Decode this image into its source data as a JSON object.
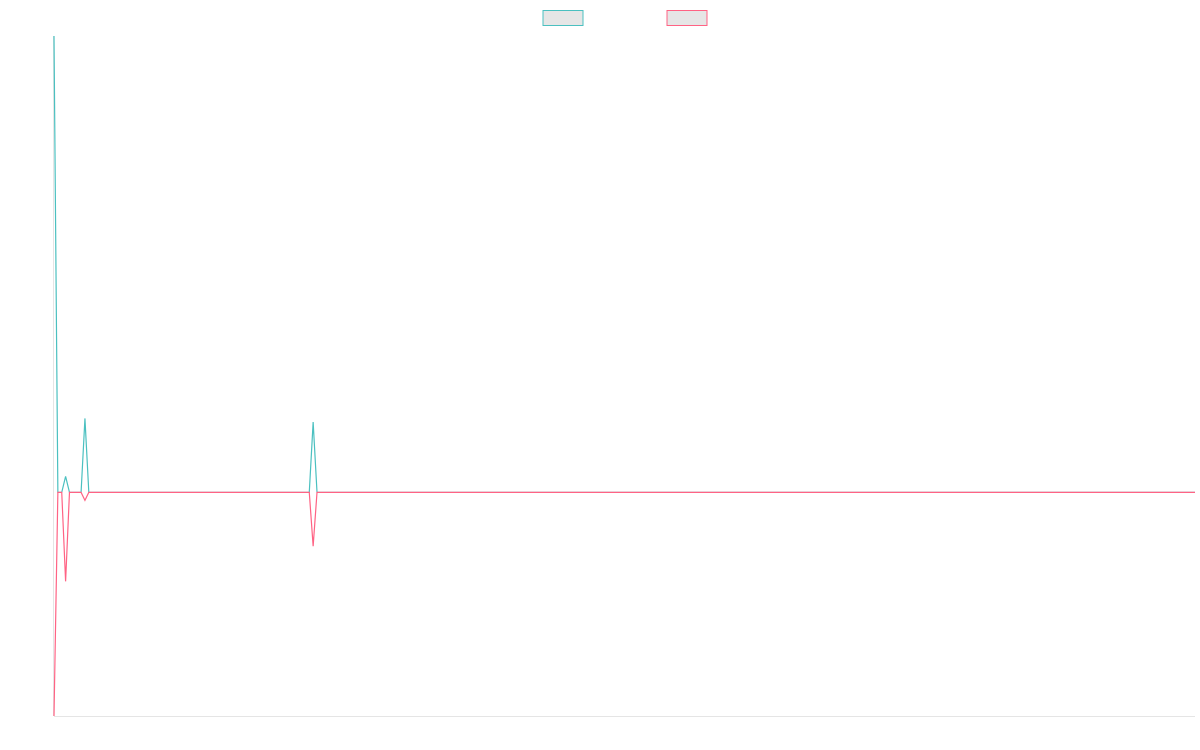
{
  "chart_data": {
    "type": "line",
    "x": [
      0,
      1,
      2,
      3,
      4,
      7,
      8,
      9,
      66,
      67,
      68,
      295
    ],
    "xlim": [
      0,
      295
    ],
    "ylim": [
      -49,
      100
    ],
    "series": [
      {
        "color": "#4bc0c0",
        "values": [
          100,
          0,
          0,
          3.5,
          0,
          0,
          16.2,
          0,
          0,
          15.4,
          0,
          0
        ]
      },
      {
        "color": "#ff6384",
        "values": [
          -49,
          0,
          0,
          -19.5,
          0,
          0,
          -1.75,
          0,
          0,
          -11.8,
          0,
          0
        ]
      }
    ],
    "legend": "top"
  }
}
